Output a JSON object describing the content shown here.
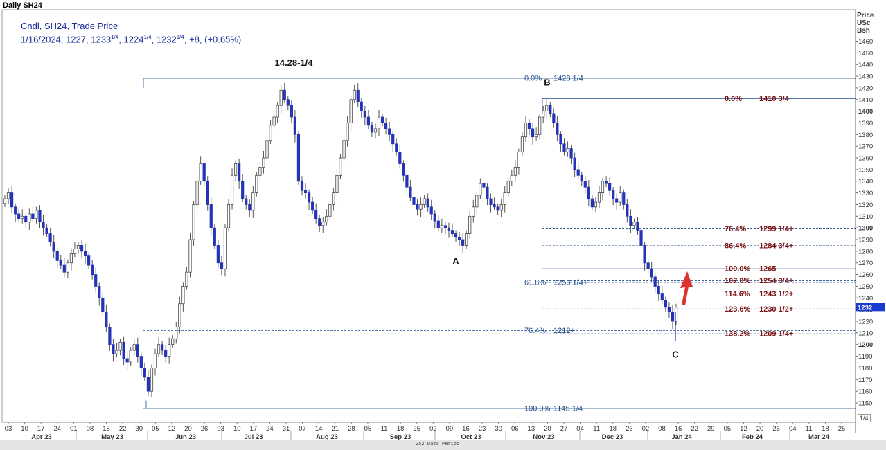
{
  "window_title": "Daily SH24",
  "info": {
    "line1": "Cndl, SH24, Trade Price",
    "date": "1/16/2024",
    "open": "1227",
    "high_int": "1233",
    "high_frac": "1/4",
    "low_int": "1224",
    "low_frac": "1/4",
    "close_int": "1232",
    "close_frac": "1/4",
    "change": "+8, (+0.65%)"
  },
  "axis_header": [
    "Price",
    "USc",
    "Bsh"
  ],
  "footer_label": "252 Data Period",
  "page_indicator": "1/4",
  "colors": {
    "bull_body": "#ffffff",
    "bear_body": "#2433b8",
    "wick": "#555555",
    "fib_blue": "#1a4a8a",
    "fib_red": "#7a1010",
    "arrow": "#e03030",
    "price_tag": "#1a3ad0"
  },
  "chart_data": {
    "type": "candlestick",
    "y_range": [
      1140,
      1470
    ],
    "y_ticks": [
      1150,
      1160,
      1170,
      1180,
      1190,
      1200,
      1210,
      1220,
      1230,
      1240,
      1250,
      1260,
      1270,
      1280,
      1290,
      1300,
      1310,
      1320,
      1330,
      1340,
      1350,
      1360,
      1370,
      1380,
      1390,
      1400,
      1410,
      1420,
      1430,
      1440,
      1450,
      1460
    ],
    "bold_ticks": [
      1200,
      1300,
      1400
    ],
    "x_day_labels": [
      "03",
      "10",
      "17",
      "24",
      "01",
      "08",
      "15",
      "22",
      "30",
      "05",
      "12",
      "20",
      "26",
      "03",
      "10",
      "17",
      "24",
      "31",
      "07",
      "14",
      "21",
      "28",
      "05",
      "11",
      "18",
      "25",
      "02",
      "09",
      "16",
      "23",
      "30",
      "06",
      "13",
      "20",
      "27",
      "04",
      "11",
      "18",
      "26",
      "02",
      "08",
      "16",
      "22",
      "29",
      "05",
      "12",
      "20",
      "26",
      "04",
      "11",
      "18",
      "25"
    ],
    "x_month_labels": [
      "Apr 23",
      "May 23",
      "Jun 23",
      "Jul 23",
      "Aug 23",
      "Sep 23",
      "Oct 23",
      "Nov 23",
      "Dec 23",
      "Jan 24",
      "Feb 24",
      "Mar 24"
    ],
    "last_price": 1232.25,
    "peak_label": "14.28-1/4",
    "wave_labels": [
      {
        "text": "A",
        "price": 1282
      },
      {
        "text": "B",
        "price": 1428
      },
      {
        "text": "C",
        "price": 1203
      }
    ],
    "fib_left": [
      {
        "pct": "0.0%",
        "value": "1428 1/4",
        "price": 1428.25
      },
      {
        "pct": "61.8%",
        "value": "1253 1/4+",
        "price": 1253.25
      },
      {
        "pct": "76.4%",
        "value": "1212+",
        "price": 1212
      },
      {
        "pct": "100.0%",
        "value": "1145 1/4",
        "price": 1145.25
      }
    ],
    "fib_right": [
      {
        "pct": "0.0%",
        "value": "1410 3/4",
        "price": 1410.75
      },
      {
        "pct": "76.4%",
        "value": "1299 1/4+",
        "price": 1299.25
      },
      {
        "pct": "86.4%",
        "value": "1284 3/4+",
        "price": 1284.75
      },
      {
        "pct": "100.0%",
        "value": "1265",
        "price": 1265
      },
      {
        "pct": "107.0%",
        "value": "1254 3/4+",
        "price": 1254.75
      },
      {
        "pct": "114.6%",
        "value": "1243 1/2+",
        "price": 1243.5
      },
      {
        "pct": "123.6%",
        "value": "1230 1/2+",
        "price": 1230.5
      },
      {
        "pct": "138.2%",
        "value": "1209 1/4+",
        "price": 1209.25
      }
    ],
    "closes": [
      1325,
      1330,
      1318,
      1312,
      1308,
      1310,
      1305,
      1312,
      1308,
      1315,
      1305,
      1300,
      1295,
      1288,
      1280,
      1272,
      1268,
      1262,
      1270,
      1278,
      1282,
      1285,
      1280,
      1276,
      1268,
      1260,
      1250,
      1240,
      1228,
      1215,
      1200,
      1192,
      1195,
      1202,
      1188,
      1185,
      1195,
      1200,
      1190,
      1180,
      1172,
      1160,
      1180,
      1192,
      1200,
      1195,
      1190,
      1200,
      1205,
      1215,
      1235,
      1250,
      1262,
      1290,
      1320,
      1340,
      1355,
      1340,
      1320,
      1300,
      1285,
      1270,
      1265,
      1300,
      1320,
      1345,
      1355,
      1340,
      1325,
      1320,
      1315,
      1330,
      1345,
      1352,
      1360,
      1375,
      1388,
      1395,
      1405,
      1418,
      1410,
      1405,
      1395,
      1380,
      1340,
      1332,
      1330,
      1322,
      1315,
      1308,
      1302,
      1305,
      1310,
      1320,
      1330,
      1345,
      1360,
      1375,
      1390,
      1410,
      1418,
      1408,
      1400,
      1395,
      1388,
      1382,
      1385,
      1395,
      1390,
      1385,
      1380,
      1372,
      1365,
      1355,
      1345,
      1335,
      1326,
      1320,
      1316,
      1320,
      1325,
      1318,
      1312,
      1306,
      1300,
      1302,
      1300,
      1298,
      1295,
      1292,
      1290,
      1285,
      1295,
      1310,
      1318,
      1328,
      1338,
      1335,
      1325,
      1320,
      1318,
      1315,
      1320,
      1330,
      1340,
      1345,
      1352,
      1365,
      1378,
      1390,
      1385,
      1378,
      1380,
      1395,
      1400,
      1405,
      1398,
      1390,
      1380,
      1372,
      1365,
      1368,
      1360,
      1350,
      1345,
      1340,
      1335,
      1325,
      1318,
      1322,
      1330,
      1340,
      1338,
      1332,
      1325,
      1322,
      1330,
      1320,
      1310,
      1302,
      1305,
      1298,
      1285,
      1270,
      1265,
      1258,
      1250,
      1244,
      1238,
      1232,
      1228,
      1220,
      1232
    ]
  }
}
